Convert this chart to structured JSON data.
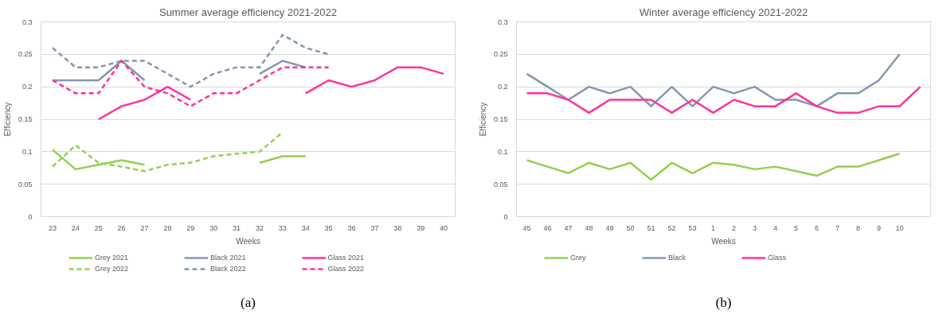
{
  "chart_data": [
    {
      "type": "line",
      "title": "Summer average efficiency 2021-2022",
      "xlabel": "Weeks",
      "ylabel": "Efficiency",
      "categories": [
        "23",
        "24",
        "25",
        "26",
        "27",
        "28",
        "29",
        "30",
        "31",
        "32",
        "33",
        "34",
        "35",
        "36",
        "37",
        "38",
        "39",
        "40"
      ],
      "ylim": [
        0,
        0.3
      ],
      "yticks": [
        0,
        0.05,
        0.1,
        0.15,
        0.2,
        0.25,
        0.3
      ],
      "grid": "y",
      "legend": "bottom",
      "series": [
        {
          "name": "Grey 2021",
          "color": "#92d050",
          "line_style": "solid",
          "values": [
            0.103,
            0.073,
            0.08,
            0.087,
            0.08,
            null,
            null,
            null,
            null,
            0.083,
            0.093,
            0.093,
            null,
            null,
            null,
            null,
            null,
            null
          ]
        },
        {
          "name": "Grey 2022",
          "color": "#92d050",
          "line_style": "dashed",
          "values": [
            0.077,
            0.11,
            0.083,
            0.077,
            0.07,
            0.08,
            0.083,
            0.093,
            0.097,
            0.1,
            0.13,
            null,
            null,
            null,
            null,
            null,
            null,
            null
          ]
        },
        {
          "name": "Black 2021",
          "color": "#8497b0",
          "line_style": "solid",
          "values": [
            0.21,
            0.21,
            0.21,
            0.24,
            0.21,
            null,
            null,
            null,
            null,
            0.22,
            0.24,
            0.23,
            null,
            null,
            null,
            null,
            null,
            null
          ]
        },
        {
          "name": "Black 2022",
          "color": "#8497b0",
          "line_style": "dashed",
          "values": [
            0.26,
            0.23,
            0.23,
            0.24,
            0.24,
            0.22,
            0.2,
            0.22,
            0.23,
            0.23,
            0.28,
            0.26,
            0.25,
            null,
            null,
            null,
            null,
            null
          ]
        },
        {
          "name": "Glass 2021",
          "color": "#ff3399",
          "line_style": "solid",
          "values": [
            null,
            null,
            0.15,
            0.17,
            0.18,
            0.2,
            0.18,
            null,
            null,
            null,
            null,
            0.19,
            0.21,
            0.2,
            0.21,
            0.23,
            0.23,
            0.22
          ]
        },
        {
          "name": "Glass 2022",
          "color": "#ff3399",
          "line_style": "dashed",
          "values": [
            0.21,
            0.19,
            0.19,
            0.24,
            0.2,
            0.19,
            0.17,
            0.19,
            0.19,
            0.21,
            0.23,
            0.23,
            0.23,
            null,
            null,
            null,
            null,
            null
          ]
        }
      ],
      "annotations": [
        "(a)"
      ]
    },
    {
      "type": "line",
      "title": "Winter average efficiency 2021-2022",
      "xlabel": "Weeks",
      "ylabel": "Efficiency",
      "categories": [
        "45",
        "46",
        "47",
        "48",
        "49",
        "50",
        "51",
        "52",
        "53",
        "1",
        "2",
        "3",
        "4",
        "5",
        "6",
        "7",
        "8",
        "9",
        "10",
        null
      ],
      "ylim": [
        0,
        0.3
      ],
      "yticks": [
        0,
        0.05,
        0.1,
        0.15,
        0.2,
        0.25,
        0.3
      ],
      "grid": "y",
      "legend": "bottom",
      "series": [
        {
          "name": "Grey",
          "color": "#92d050",
          "line_style": "solid",
          "values": [
            0.087,
            0.077,
            0.067,
            0.083,
            0.073,
            0.083,
            0.057,
            0.083,
            0.067,
            0.083,
            0.08,
            0.073,
            0.077,
            0.07,
            0.063,
            0.077,
            0.077,
            0.087,
            0.097,
            null
          ]
        },
        {
          "name": "Black",
          "color": "#8497b0",
          "line_style": "solid",
          "values": [
            0.22,
            0.2,
            0.18,
            0.2,
            0.19,
            0.2,
            0.17,
            0.2,
            0.17,
            0.2,
            0.19,
            0.2,
            0.18,
            0.18,
            0.17,
            0.19,
            0.19,
            0.21,
            0.25,
            null
          ]
        },
        {
          "name": "Glass",
          "color": "#ff3399",
          "line_style": "solid",
          "values": [
            0.19,
            0.19,
            0.18,
            0.16,
            0.18,
            0.18,
            0.18,
            0.16,
            0.18,
            0.16,
            0.18,
            0.17,
            0.17,
            0.19,
            0.17,
            0.16,
            0.16,
            0.17,
            0.17,
            0.2
          ]
        }
      ],
      "annotations": [
        "(b)"
      ]
    }
  ]
}
